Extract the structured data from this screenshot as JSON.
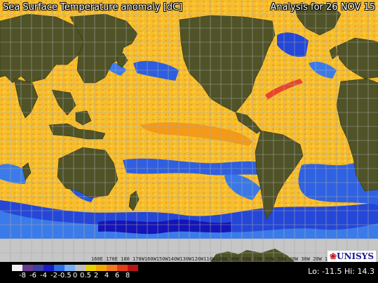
{
  "header": {
    "title": "Sea Surface Temperature anomaly [dC]",
    "analysis": "Analysis for 26 NOV 15"
  },
  "map": {
    "ocean_base_color": "#f7be2c",
    "land_color": "#4f5327",
    "ice_color": "#c6c6c6",
    "grid_color": "#a9a9a9",
    "scale_text": "160E 170E 180 170W160W150W140W130W120W110W100W 90W 80W 70W 60W 50W 40W 30W 20W 10W"
  },
  "legend": {
    "ticks": [
      "-8",
      "-6",
      "-4",
      "-2",
      "-0.5",
      "0",
      "0.5",
      "2",
      "4",
      "6",
      "8"
    ],
    "colors": [
      "#f2f2f2",
      "#6a3b8e",
      "#3f3fa0",
      "#1a1ac8",
      "#2e6ee6",
      "#76aef2",
      "#bfbfbf",
      "#e8d000",
      "#f0a800",
      "#f07820",
      "#e23c1a",
      "#b81414"
    ],
    "lo_hi": "Lo: -11.5  Hi: 14.3"
  },
  "logo": {
    "mark": "❀",
    "text": "UNISYS"
  }
}
